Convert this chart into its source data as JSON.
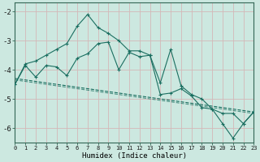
{
  "xlabel": "Humidex (Indice chaleur)",
  "background_color": "#cce8e0",
  "grid_color": "#d4b8b8",
  "line_color": "#1a6e60",
  "line1_x": [
    0,
    1,
    2,
    3,
    4,
    5,
    6,
    7,
    8,
    9,
    10,
    11,
    12,
    13,
    14,
    15,
    16,
    17,
    18,
    19,
    20,
    21,
    22,
    23
  ],
  "line1_y": [
    -4.5,
    -3.8,
    -3.7,
    -3.5,
    -3.3,
    -3.1,
    -2.5,
    -2.1,
    -2.55,
    -2.75,
    -3.0,
    -3.35,
    -3.35,
    -3.5,
    -4.45,
    -3.3,
    -4.55,
    -4.85,
    -5.0,
    -5.35,
    -5.85,
    -6.35,
    -5.85,
    -5.45
  ],
  "line2_x": [
    0,
    1,
    2,
    3,
    4,
    5,
    6,
    7,
    8,
    9,
    10,
    11,
    12,
    13,
    14,
    15,
    16,
    17,
    18,
    19,
    20,
    21,
    22,
    23
  ],
  "line2_y": [
    -4.5,
    -3.85,
    -4.25,
    -3.85,
    -3.9,
    -4.2,
    -3.6,
    -3.45,
    -3.1,
    -3.05,
    -4.0,
    -3.4,
    -3.55,
    -3.5,
    -4.85,
    -4.8,
    -4.65,
    -4.9,
    -5.3,
    -5.35,
    -5.5,
    -5.5,
    -5.85,
    -5.45
  ],
  "line3_x": [
    0,
    23
  ],
  "line3_y": [
    -4.3,
    -5.45
  ],
  "xlim": [
    0,
    23
  ],
  "ylim": [
    -6.5,
    -1.7
  ],
  "yticks": [
    -6,
    -5,
    -4,
    -3,
    -2
  ],
  "xticks": [
    0,
    1,
    2,
    3,
    4,
    5,
    6,
    7,
    8,
    9,
    10,
    11,
    12,
    13,
    14,
    15,
    16,
    17,
    18,
    19,
    20,
    21,
    22,
    23
  ]
}
